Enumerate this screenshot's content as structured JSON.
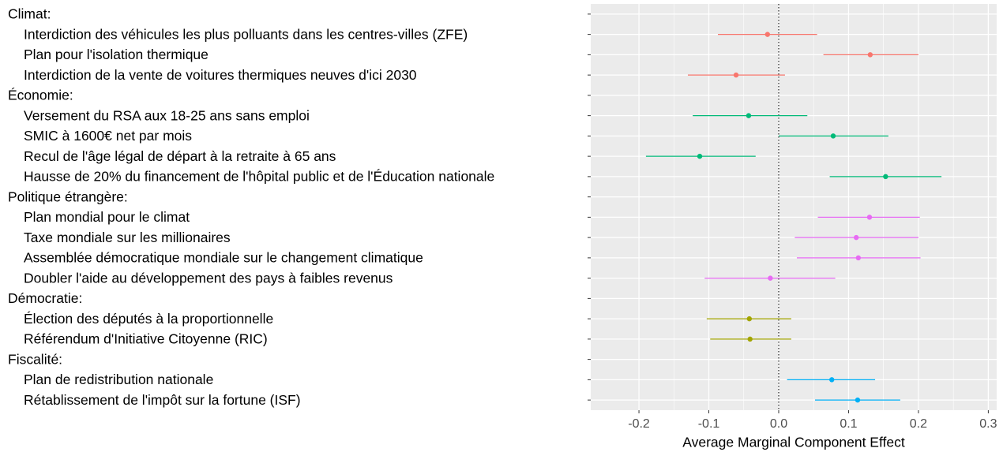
{
  "chart_data": {
    "type": "dot",
    "x_label": "Average Marginal Component Effect",
    "categories": [
      "Climat:",
      "Interdiction des véhicules les plus polluants dans les centres-villes (ZFE)",
      "Plan pour l'isolation thermique",
      "Interdiction de la vente de voitures thermiques neuves d'ici 2030",
      "Économie:",
      "Versement du RSA aux 18-25 ans sans emploi",
      "SMIC à 1600€ net par mois",
      "Recul de l'âge légal de départ à la retraite à 65 ans",
      "Hausse de 20% du financement de l'hôpital public et de l'Éducation nationale",
      "Politique étrangère:",
      "Plan mondial pour le climat",
      "Taxe mondiale sur les millionaires",
      "Assemblée démocratique mondiale sur le changement climatique",
      "Doubler l'aide au développement des pays à faibles revenus",
      "Démocratie:",
      "Élection des députés à la proportionnelle",
      "Référendum d'Initiative Citoyenne (RIC)",
      "Fiscalité:",
      "Plan de redistribution nationale",
      "Rétablissement de l'impôt sur la fortune (ISF)"
    ],
    "values": [
      null,
      -0.016,
      0.131,
      -0.061,
      null,
      -0.043,
      0.078,
      -0.113,
      0.153,
      null,
      0.13,
      0.111,
      0.114,
      -0.012,
      null,
      -0.042,
      -0.041,
      null,
      0.076,
      0.113
    ],
    "lower": [
      null,
      -0.087,
      0.064,
      -0.13,
      null,
      -0.123,
      0.0,
      -0.19,
      0.073,
      null,
      0.056,
      0.023,
      0.026,
      -0.106,
      null,
      -0.103,
      -0.098,
      null,
      0.012,
      0.052
    ],
    "upper": [
      null,
      0.055,
      0.2,
      0.009,
      null,
      0.041,
      0.157,
      -0.033,
      0.233,
      null,
      0.202,
      0.2,
      0.203,
      0.081,
      null,
      0.018,
      0.018,
      null,
      0.138,
      0.174
    ],
    "colors": [
      null,
      "#f8766d",
      "#f8766d",
      "#f8766d",
      null,
      "#00ba78",
      "#00ba78",
      "#00ba78",
      "#00ba78",
      null,
      "#e76bf3",
      "#e76bf3",
      "#e76bf3",
      "#e76bf3",
      null,
      "#a3a500",
      "#a3a500",
      null,
      "#00b0f6",
      "#00b0f6"
    ],
    "xlim": [
      -0.269,
      0.312
    ],
    "xticks": [
      -0.2,
      -0.1,
      {
        "value": 0,
        "label": "0.0"
      },
      0.1,
      0.2,
      0.3
    ],
    "reference_line": 0,
    "grid": true
  }
}
